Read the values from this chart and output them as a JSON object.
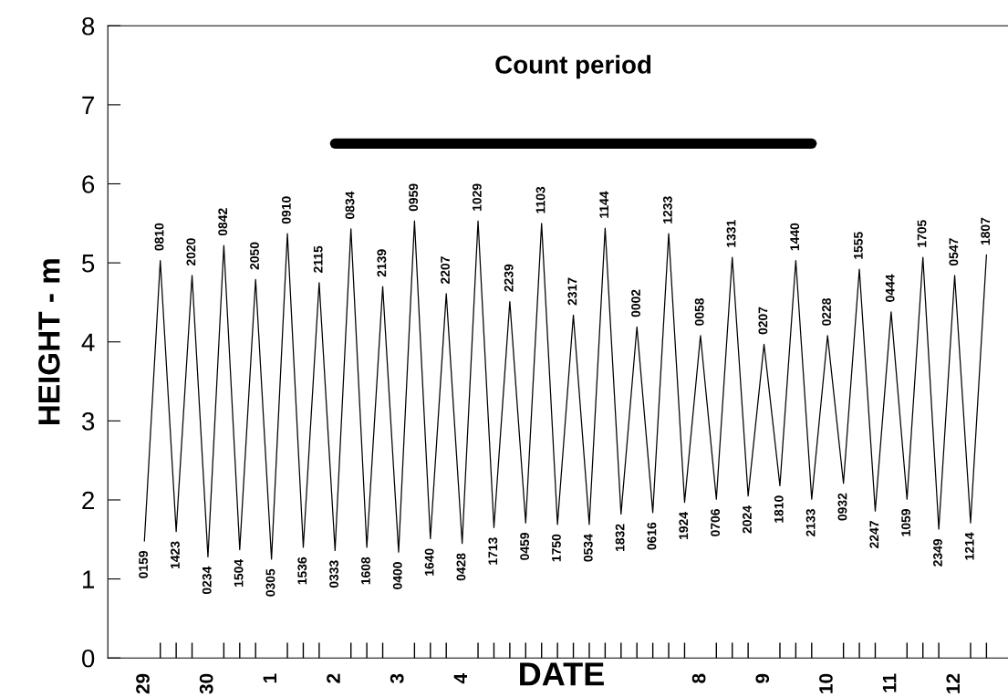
{
  "chart_data": {
    "type": "line",
    "xlabel": "DATE",
    "ylabel": "HEIGHT - m",
    "categories": [
      "29",
      null,
      null,
      null,
      "30",
      null,
      null,
      null,
      "1",
      null,
      null,
      null,
      "2",
      null,
      null,
      null,
      "3",
      null,
      null,
      null,
      "4",
      null,
      null,
      null,
      null,
      null,
      null,
      null,
      null,
      null,
      null,
      null,
      null,
      null,
      null,
      "8",
      null,
      null,
      null,
      "9",
      null,
      null,
      null,
      "10",
      null,
      null,
      null,
      "11",
      null,
      null,
      null,
      "12",
      null,
      null
    ],
    "series": [
      {
        "color": "#000000",
        "values": [
          1.48,
          5.03,
          1.6,
          4.84,
          1.28,
          5.22,
          1.37,
          4.79,
          1.25,
          5.37,
          1.4,
          4.75,
          1.36,
          5.43,
          1.4,
          4.7,
          1.34,
          5.53,
          1.51,
          4.61,
          1.45,
          5.53,
          1.65,
          4.51,
          1.71,
          5.5,
          1.69,
          4.34,
          1.69,
          5.44,
          1.82,
          4.19,
          1.84,
          5.37,
          1.97,
          4.08,
          2.01,
          5.07,
          2.05,
          3.97,
          2.18,
          5.03,
          2.01,
          4.08,
          2.21,
          4.92,
          1.86,
          4.38,
          2.01,
          5.07,
          1.63,
          4.84,
          1.71,
          5.1
        ]
      },
      {
        "name": "Count period",
        "color": "#000000",
        "values": [
          null,
          null,
          null,
          null,
          null,
          null,
          null,
          null,
          null,
          null,
          null,
          null,
          6.51,
          6.51,
          6.51,
          6.51,
          6.51,
          6.51,
          6.51,
          6.51,
          6.51,
          6.51,
          6.51,
          6.51,
          6.51,
          6.51,
          6.51,
          6.51,
          6.51,
          6.51,
          6.51,
          6.51,
          6.51,
          6.51,
          6.51,
          6.51,
          6.51,
          6.51,
          6.51,
          6.51,
          6.51,
          6.51,
          6.51,
          null,
          null,
          null,
          null,
          null,
          null,
          null,
          null,
          null,
          null,
          null
        ]
      }
    ],
    "annotations": [
      "0159",
      "0810",
      "1423",
      "2020",
      "0234",
      "0842",
      "1504",
      "2050",
      "0305",
      "0910",
      "1536",
      "2115",
      "0333",
      "0834",
      "1608",
      "2139",
      "0400",
      "0959",
      "1640",
      "2207",
      "0428",
      "1029",
      "1713",
      "2239",
      "0459",
      "1103",
      "1750",
      "2317",
      "0534",
      "1144",
      "1832",
      "0002",
      "0616",
      "1233",
      "1924",
      "0058",
      "0706",
      "1331",
      "2024",
      "0207",
      "1810",
      "1440",
      "2133",
      "0228",
      "0932",
      "1555",
      "2247",
      "0444",
      "1059",
      "1705",
      "2349",
      "0547",
      "1214",
      "1807"
    ],
    "ylim": [
      0,
      8
    ],
    "yticks": [
      0,
      1,
      2,
      3,
      4,
      5,
      6,
      7,
      8
    ],
    "grid": false,
    "legend": false,
    "marker": "none",
    "line_style": "solid"
  }
}
